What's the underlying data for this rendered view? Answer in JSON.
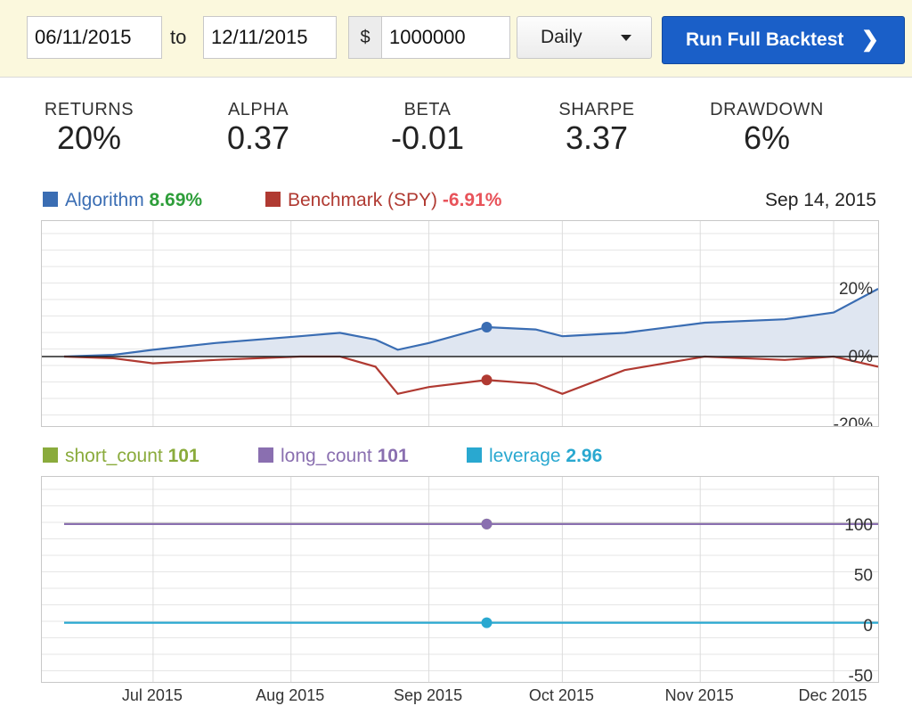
{
  "controls": {
    "start_date": "06/11/2015",
    "to_label": "to",
    "end_date": "12/11/2015",
    "currency_symbol": "$",
    "capital": "1000000",
    "frequency": "Daily",
    "run_button": "Run Full Backtest"
  },
  "stats": [
    {
      "label": "RETURNS",
      "value": "20%"
    },
    {
      "label": "ALPHA",
      "value": "0.37"
    },
    {
      "label": "BETA",
      "value": "-0.01"
    },
    {
      "label": "SHARPE",
      "value": "3.37"
    },
    {
      "label": "DRAWDOWN",
      "value": "6%"
    }
  ],
  "returns_legend": {
    "algorithm_label": "Algorithm",
    "algorithm_value": "8.69%",
    "benchmark_label": "Benchmark (SPY)",
    "benchmark_value": "-6.91%",
    "hover_date": "Sep 14, 2015"
  },
  "counts_legend": {
    "short_label": "short_count",
    "short_value": "101",
    "long_label": "long_count",
    "long_value": "101",
    "leverage_label": "leverage",
    "leverage_value": "2.96"
  },
  "colors": {
    "algorithm": "#3a6db3",
    "algorithm_value": "#2e9e3a",
    "benchmark": "#b03a32",
    "benchmark_value": "#e8535a",
    "short_count": "#8aab3c",
    "long_count": "#8a6fb0",
    "leverage": "#29a8d0"
  },
  "chart_data": [
    {
      "type": "line",
      "x_ticks": [
        "Jul 2015",
        "Aug 2015",
        "Sep 2015",
        "Oct 2015",
        "Nov 2015",
        "Dec 2015"
      ],
      "y_ticks": [
        "20%",
        "0%",
        "-20%"
      ],
      "ylim": [
        -20,
        20
      ],
      "series": [
        {
          "name": "Algorithm",
          "x": [
            "2015-06-11",
            "2015-06-22",
            "2015-07-01",
            "2015-07-15",
            "2015-08-03",
            "2015-08-12",
            "2015-08-20",
            "2015-08-25",
            "2015-09-01",
            "2015-09-14",
            "2015-09-25",
            "2015-10-01",
            "2015-10-15",
            "2015-11-02",
            "2015-11-20",
            "2015-12-01",
            "2015-12-11"
          ],
          "values": [
            0,
            0.5,
            2,
            4,
            6,
            7,
            5,
            2,
            4,
            8.69,
            8,
            6,
            7,
            10,
            11,
            13,
            20
          ]
        },
        {
          "name": "Benchmark (SPY)",
          "x": [
            "2015-06-11",
            "2015-06-22",
            "2015-07-01",
            "2015-07-15",
            "2015-08-03",
            "2015-08-12",
            "2015-08-20",
            "2015-08-25",
            "2015-09-01",
            "2015-09-14",
            "2015-09-25",
            "2015-10-01",
            "2015-10-15",
            "2015-11-02",
            "2015-11-20",
            "2015-12-01",
            "2015-12-11"
          ],
          "values": [
            0,
            -0.5,
            -2,
            -1,
            0,
            0,
            -3,
            -11,
            -9,
            -6.91,
            -8,
            -11,
            -4,
            0,
            -1,
            0,
            -3
          ]
        }
      ]
    },
    {
      "type": "line",
      "x_ticks": [
        "Jul 2015",
        "Aug 2015",
        "Sep 2015",
        "Oct 2015",
        "Nov 2015",
        "Dec 2015"
      ],
      "y_ticks": [
        "100",
        "50",
        "0",
        "-50"
      ],
      "ylim": [
        -60,
        120
      ],
      "series": [
        {
          "name": "short_count",
          "x": [
            "2015-06-11",
            "2015-12-11"
          ],
          "values": [
            101,
            101
          ]
        },
        {
          "name": "long_count",
          "x": [
            "2015-06-11",
            "2015-12-11"
          ],
          "values": [
            101,
            101
          ]
        },
        {
          "name": "leverage",
          "x": [
            "2015-06-11",
            "2015-12-11"
          ],
          "values": [
            2.96,
            2.96
          ]
        }
      ]
    }
  ]
}
